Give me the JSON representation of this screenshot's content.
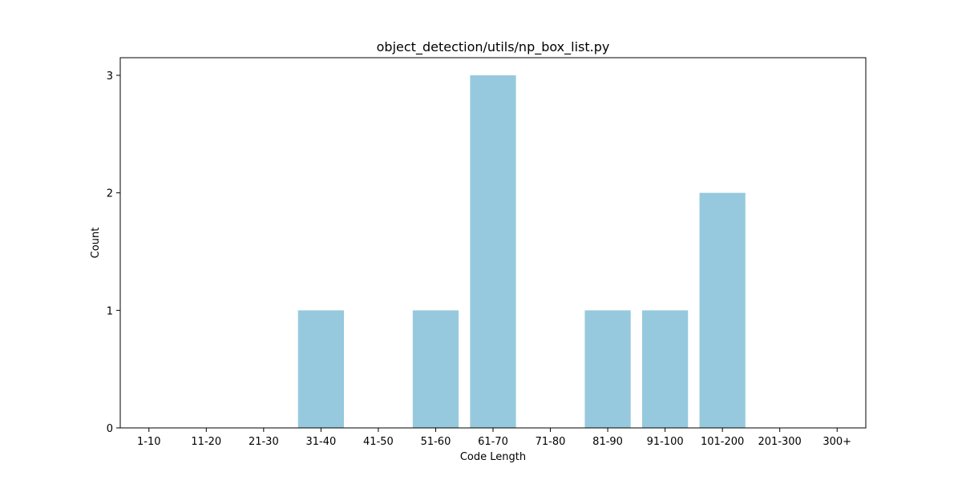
{
  "chart_data": {
    "type": "bar",
    "title": "object_detection/utils/np_box_list.py",
    "xlabel": "Code Length",
    "ylabel": "Count",
    "categories": [
      "1-10",
      "11-20",
      "21-30",
      "31-40",
      "41-50",
      "51-60",
      "61-70",
      "71-80",
      "81-90",
      "91-100",
      "101-200",
      "201-300",
      "300+"
    ],
    "values": [
      0,
      0,
      0,
      1,
      0,
      1,
      3,
      0,
      1,
      1,
      2,
      0,
      0
    ],
    "yticks": [
      0,
      1,
      2,
      3
    ],
    "ylim": [
      0,
      3.15
    ],
    "grid": false,
    "bar_color": "#96c9dd"
  }
}
